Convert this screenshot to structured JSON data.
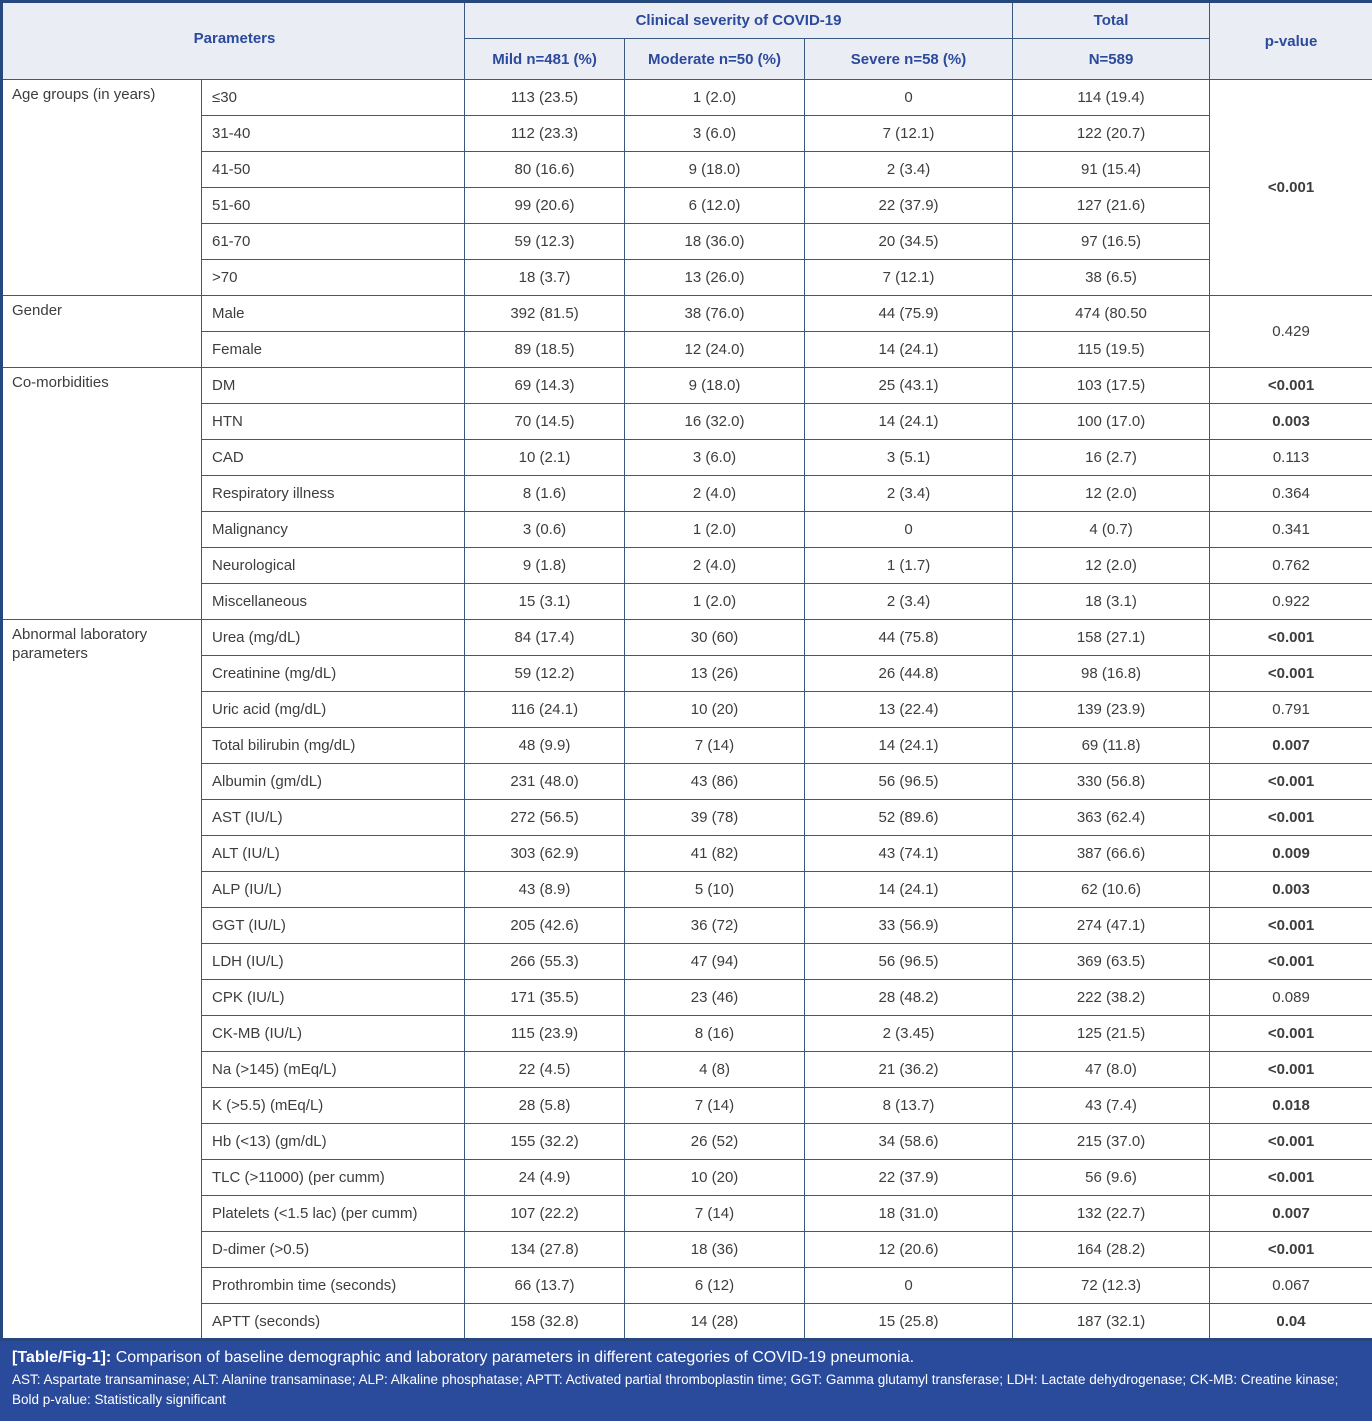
{
  "header": {
    "parameters_label": "Parameters",
    "severity_label": "Clinical severity of COVID-19",
    "total_label": "Total",
    "pvalue_label": "p-value",
    "columns": [
      "Mild n=481 (%)",
      "Moderate n=50 (%)",
      "Severe n=58 (%)",
      "N=589"
    ]
  },
  "groups": [
    {
      "name": "Age groups (in years)",
      "shared_p": {
        "value": "<0.001",
        "bold": true
      },
      "rows": [
        {
          "label": "≤30",
          "mild": "113 (23.5)",
          "moderate": "1 (2.0)",
          "severe": "0",
          "total": "114 (19.4)"
        },
        {
          "label": "31-40",
          "mild": "112 (23.3)",
          "moderate": "3 (6.0)",
          "severe": "7 (12.1)",
          "total": "122 (20.7)"
        },
        {
          "label": "41-50",
          "mild": "80 (16.6)",
          "moderate": "9 (18.0)",
          "severe": "2 (3.4)",
          "total": "91 (15.4)"
        },
        {
          "label": "51-60",
          "mild": "99 (20.6)",
          "moderate": "6 (12.0)",
          "severe": "22 (37.9)",
          "total": "127 (21.6)"
        },
        {
          "label": "61-70",
          "mild": "59 (12.3)",
          "moderate": "18 (36.0)",
          "severe": "20 (34.5)",
          "total": "97 (16.5)"
        },
        {
          "label": ">70",
          "mild": "18 (3.7)",
          "moderate": "13 (26.0)",
          "severe": "7 (12.1)",
          "total": "38 (6.5)"
        }
      ]
    },
    {
      "name": "Gender",
      "shared_p": {
        "value": "0.429",
        "bold": false
      },
      "rows": [
        {
          "label": "Male",
          "mild": "392 (81.5)",
          "moderate": "38 (76.0)",
          "severe": "44 (75.9)",
          "total": "474 (80.50"
        },
        {
          "label": "Female",
          "mild": "89 (18.5)",
          "moderate": "12 (24.0)",
          "severe": "14 (24.1)",
          "total": "115 (19.5)"
        }
      ]
    },
    {
      "name": "Co-morbidities",
      "rows": [
        {
          "label": "DM",
          "mild": "69 (14.3)",
          "moderate": "9 (18.0)",
          "severe": "25 (43.1)",
          "total": "103 (17.5)",
          "p": {
            "value": "<0.001",
            "bold": true
          }
        },
        {
          "label": "HTN",
          "mild": "70 (14.5)",
          "moderate": "16 (32.0)",
          "severe": "14 (24.1)",
          "total": "100 (17.0)",
          "p": {
            "value": "0.003",
            "bold": true
          }
        },
        {
          "label": "CAD",
          "mild": "10 (2.1)",
          "moderate": "3 (6.0)",
          "severe": "3 (5.1)",
          "total": "16 (2.7)",
          "p": {
            "value": "0.113",
            "bold": false
          }
        },
        {
          "label": "Respiratory illness",
          "mild": "8 (1.6)",
          "moderate": "2 (4.0)",
          "severe": "2 (3.4)",
          "total": "12 (2.0)",
          "p": {
            "value": "0.364",
            "bold": false
          }
        },
        {
          "label": "Malignancy",
          "mild": "3 (0.6)",
          "moderate": "1 (2.0)",
          "severe": "0",
          "total": "4 (0.7)",
          "p": {
            "value": "0.341",
            "bold": false
          }
        },
        {
          "label": "Neurological",
          "mild": "9 (1.8)",
          "moderate": "2 (4.0)",
          "severe": "1 (1.7)",
          "total": "12 (2.0)",
          "p": {
            "value": "0.762",
            "bold": false
          }
        },
        {
          "label": "Miscellaneous",
          "mild": "15 (3.1)",
          "moderate": "1 (2.0)",
          "severe": "2 (3.4)",
          "total": "18 (3.1)",
          "p": {
            "value": "0.922",
            "bold": false
          }
        }
      ]
    },
    {
      "name": "Abnormal laboratory parameters",
      "rows": [
        {
          "label": "Urea (mg/dL)",
          "mild": "84 (17.4)",
          "moderate": "30 (60)",
          "severe": "44 (75.8)",
          "total": "158 (27.1)",
          "p": {
            "value": "<0.001",
            "bold": true
          }
        },
        {
          "label": "Creatinine (mg/dL)",
          "mild": "59 (12.2)",
          "moderate": "13 (26)",
          "severe": "26 (44.8)",
          "total": "98 (16.8)",
          "p": {
            "value": "<0.001",
            "bold": true
          }
        },
        {
          "label": "Uric acid (mg/dL)",
          "mild": "116 (24.1)",
          "moderate": "10 (20)",
          "severe": "13 (22.4)",
          "total": "139 (23.9)",
          "p": {
            "value": "0.791",
            "bold": false
          }
        },
        {
          "label": "Total bilirubin (mg/dL)",
          "mild": "48 (9.9)",
          "moderate": "7 (14)",
          "severe": "14 (24.1)",
          "total": "69 (11.8)",
          "p": {
            "value": "0.007",
            "bold": true
          }
        },
        {
          "label": "Albumin (gm/dL)",
          "mild": "231 (48.0)",
          "moderate": "43 (86)",
          "severe": "56 (96.5)",
          "total": "330 (56.8)",
          "p": {
            "value": "<0.001",
            "bold": true
          }
        },
        {
          "label": "AST (IU/L)",
          "mild": "272 (56.5)",
          "moderate": "39 (78)",
          "severe": "52 (89.6)",
          "total": "363 (62.4)",
          "p": {
            "value": "<0.001",
            "bold": true
          }
        },
        {
          "label": "ALT (IU/L)",
          "mild": "303 (62.9)",
          "moderate": "41 (82)",
          "severe": "43 (74.1)",
          "total": "387 (66.6)",
          "p": {
            "value": "0.009",
            "bold": true
          }
        },
        {
          "label": "ALP (IU/L)",
          "mild": "43 (8.9)",
          "moderate": "5 (10)",
          "severe": "14 (24.1)",
          "total": "62 (10.6)",
          "p": {
            "value": "0.003",
            "bold": true
          }
        },
        {
          "label": "GGT (IU/L)",
          "mild": "205 (42.6)",
          "moderate": "36 (72)",
          "severe": "33 (56.9)",
          "total": "274 (47.1)",
          "p": {
            "value": "<0.001",
            "bold": true
          }
        },
        {
          "label": "LDH (IU/L)",
          "mild": "266 (55.3)",
          "moderate": "47 (94)",
          "severe": "56 (96.5)",
          "total": "369 (63.5)",
          "p": {
            "value": "<0.001",
            "bold": true
          }
        },
        {
          "label": "CPK (IU/L)",
          "mild": "171 (35.5)",
          "moderate": "23 (46)",
          "severe": "28 (48.2)",
          "total": "222 (38.2)",
          "p": {
            "value": "0.089",
            "bold": false
          }
        },
        {
          "label": "CK-MB (IU/L)",
          "mild": "115 (23.9)",
          "moderate": "8 (16)",
          "severe": "2 (3.45)",
          "total": "125 (21.5)",
          "p": {
            "value": "<0.001",
            "bold": true
          }
        },
        {
          "label": "Na (>145) (mEq/L)",
          "mild": "22 (4.5)",
          "moderate": "4 (8)",
          "severe": "21 (36.2)",
          "total": "47 (8.0)",
          "p": {
            "value": "<0.001",
            "bold": true
          }
        },
        {
          "label": "K (>5.5) (mEq/L)",
          "mild": "28 (5.8)",
          "moderate": "7 (14)",
          "severe": "8 (13.7)",
          "total": "43 (7.4)",
          "p": {
            "value": "0.018",
            "bold": true
          }
        },
        {
          "label": "Hb (<13) (gm/dL)",
          "mild": "155 (32.2)",
          "moderate": "26 (52)",
          "severe": "34 (58.6)",
          "total": "215 (37.0)",
          "p": {
            "value": "<0.001",
            "bold": true
          }
        },
        {
          "label": "TLC (>11000) (per cumm)",
          "mild": "24 (4.9)",
          "moderate": "10 (20)",
          "severe": "22 (37.9)",
          "total": "56 (9.6)",
          "p": {
            "value": "<0.001",
            "bold": true
          }
        },
        {
          "label": "Platelets (<1.5 lac) (per cumm)",
          "mild": "107 (22.2)",
          "moderate": "7 (14)",
          "severe": "18 (31.0)",
          "total": "132 (22.7)",
          "p": {
            "value": "0.007",
            "bold": true
          }
        },
        {
          "label": "D-dimer (>0.5)",
          "mild": "134 (27.8)",
          "moderate": "18 (36)",
          "severe": "12 (20.6)",
          "total": "164 (28.2)",
          "p": {
            "value": "<0.001",
            "bold": true
          }
        },
        {
          "label": "Prothrombin time (seconds)",
          "mild": "66 (13.7)",
          "moderate": "6 (12)",
          "severe": "0",
          "total": "72 (12.3)",
          "p": {
            "value": "0.067",
            "bold": false
          }
        },
        {
          "label": "APTT (seconds)",
          "mild": "158 (32.8)",
          "moderate": "14 (28)",
          "severe": "15 (25.8)",
          "total": "187 (32.1)",
          "p": {
            "value": "0.04",
            "bold": true
          }
        }
      ]
    }
  ],
  "footer": {
    "caption_label": "[Table/Fig-1]:",
    "caption_text": " Comparison of baseline demographic and laboratory parameters in different categories of COVID-19 pneumonia.",
    "abbreviations": "AST: Aspartate transaminase; ALT: Alanine transaminase; ALP: Alkaline phosphatase; APTT: Activated partial thromboplastin time; GGT: Gamma glutamyl transferase; LDH: Lactate dehydrogenase; CK-MB: Creatine kinase; Bold p-value: Statistically significant"
  },
  "colors": {
    "outer_border": "#27477f",
    "inner_border": "#3b5880",
    "header_bg": "#ebedf5",
    "header_text": "#2b4a9b",
    "body_text": "#3d3d3d",
    "footer_bg": "#2a4b9c",
    "footer_text": "#ffffff"
  }
}
